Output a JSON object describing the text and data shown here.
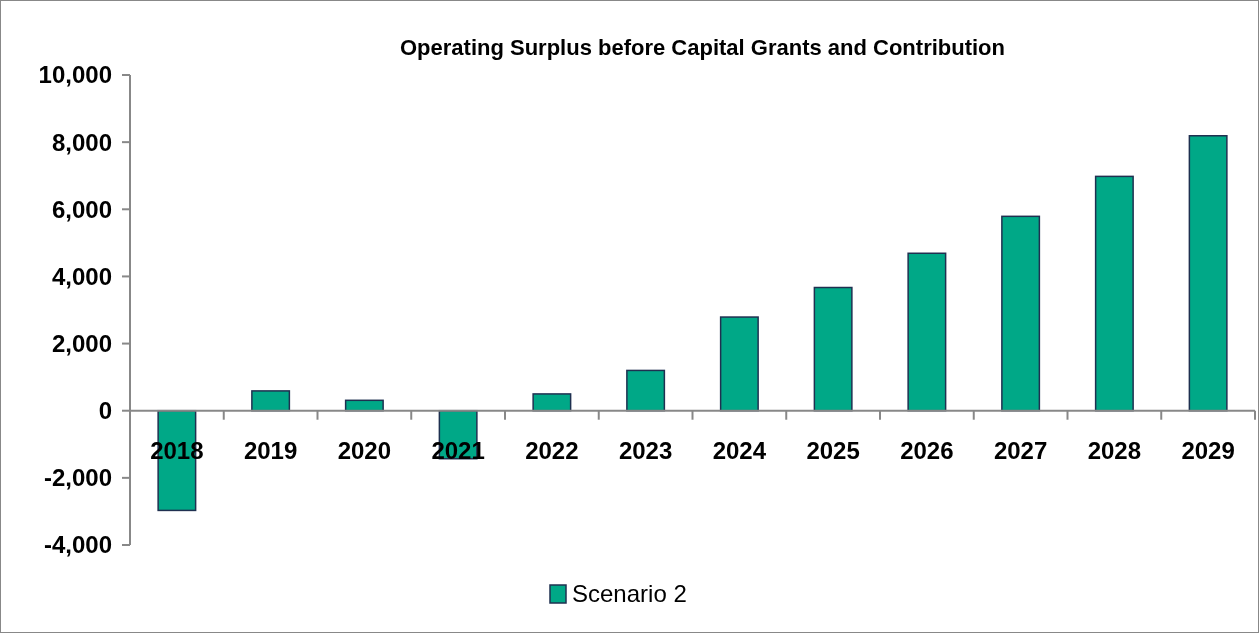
{
  "chart_data": {
    "type": "bar",
    "title": "Operating Surplus before Capital Grants and Contribution",
    "categories": [
      "2018",
      "2019",
      "2020",
      "2021",
      "2022",
      "2023",
      "2024",
      "2025",
      "2026",
      "2027",
      "2028",
      "2029"
    ],
    "series": [
      {
        "name": "Scenario 2",
        "color": "#00a887",
        "values": [
          -2970,
          590,
          310,
          -1430,
          500,
          1200,
          2790,
          3670,
          4690,
          5790,
          6980,
          8190
        ]
      }
    ],
    "ylim": [
      -4000,
      10000
    ],
    "yticks": [
      {
        "value": -4000,
        "label": "-4,000"
      },
      {
        "value": -2000,
        "label": "-2,000"
      },
      0,
      {
        "value": 2000,
        "label": "2,000"
      },
      {
        "value": 4000,
        "label": "4,000"
      },
      {
        "value": 6000,
        "label": "6,000"
      },
      {
        "value": 8000,
        "label": "8,000"
      },
      {
        "value": 10000,
        "label": "10,000"
      }
    ],
    "grid": false,
    "legend": "bottom"
  }
}
